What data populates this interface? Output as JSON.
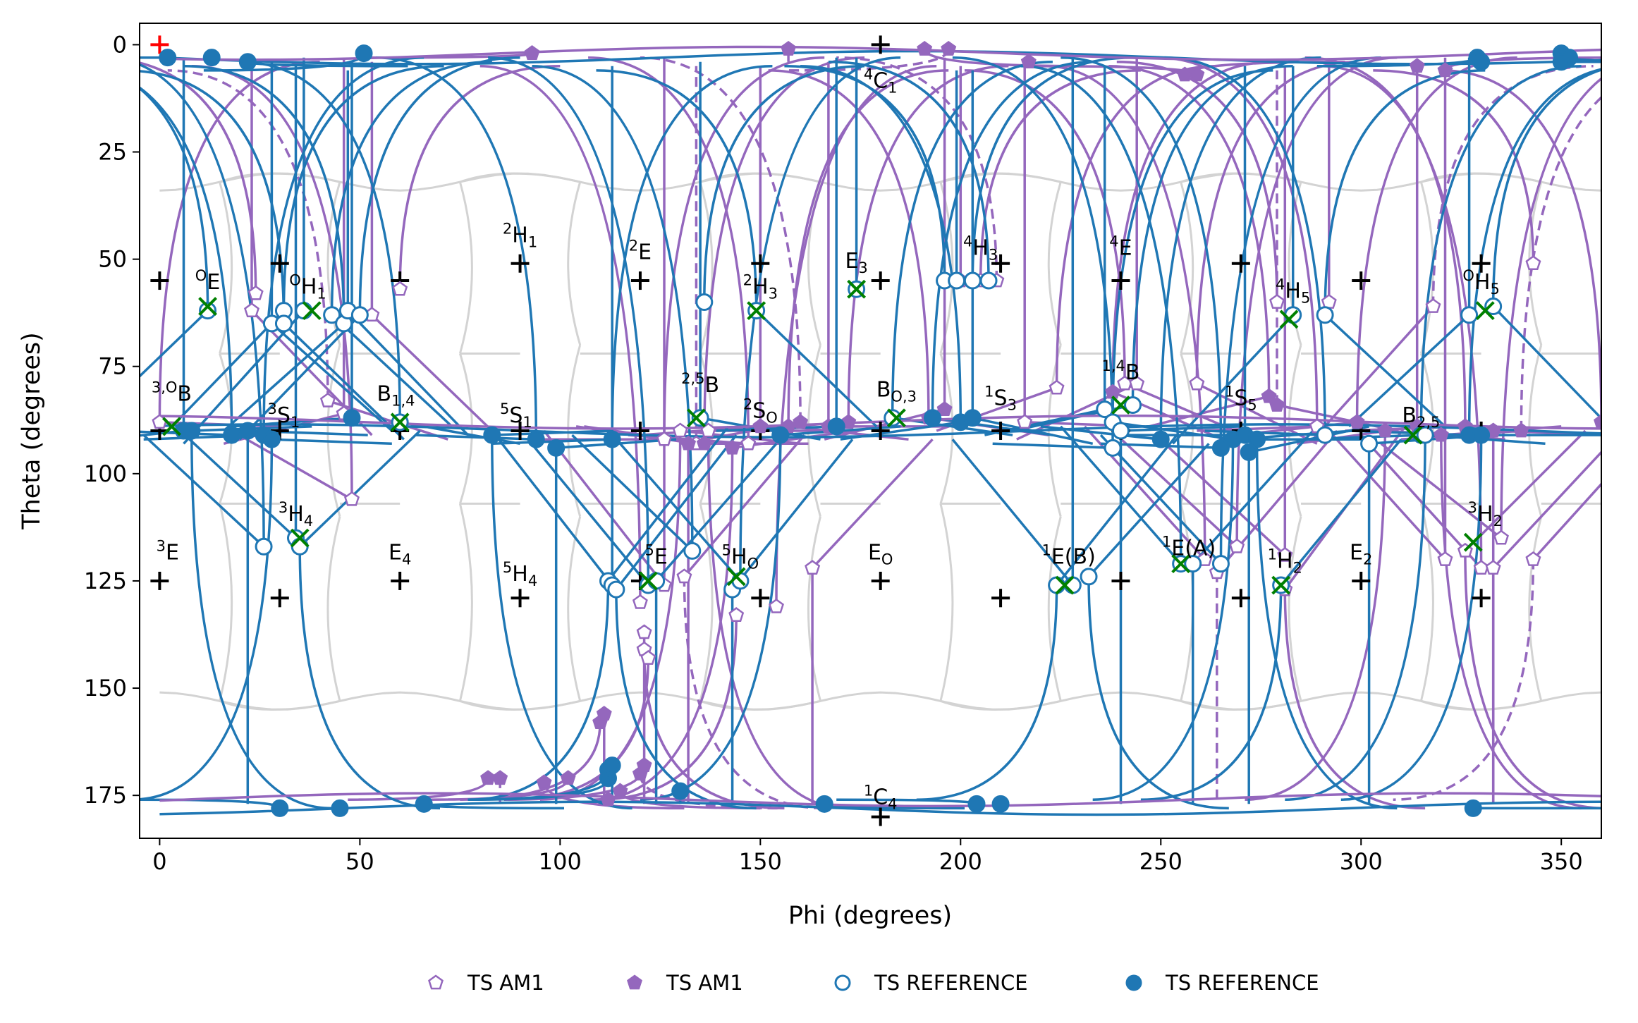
{
  "chart_data": {
    "type": "scatter",
    "title": "",
    "xlabel": "Phi (degrees)",
    "ylabel": "Theta (degrees)",
    "xlim": [
      -5,
      360
    ],
    "ylim": [
      185,
      -5
    ],
    "y_inverted": true,
    "xticks": [
      0,
      50,
      100,
      150,
      200,
      250,
      300,
      350
    ],
    "yticks": [
      0,
      25,
      50,
      75,
      100,
      125,
      150,
      175
    ],
    "grid": false,
    "legend_position": "bottom-center",
    "colors": {
      "am1": "#9467bd",
      "reference": "#1f77b4",
      "background_lines": "#d3d3d3",
      "landmark": "#000000",
      "start_marker": "#ff0000",
      "transition_marker": "#008000"
    },
    "legend": [
      {
        "label": "TS AM1",
        "marker": "pentagon-open",
        "color": "#9467bd"
      },
      {
        "label": "TS AM1",
        "marker": "pentagon-filled",
        "color": "#9467bd"
      },
      {
        "label": "TS REFERENCE",
        "marker": "circle-open",
        "color": "#1f77b4"
      },
      {
        "label": "TS REFERENCE",
        "marker": "circle-filled",
        "color": "#1f77b4"
      }
    ],
    "puckering_labels": [
      {
        "text": "4C1",
        "x": 180,
        "y": 10
      },
      {
        "text": "1C4",
        "x": 180,
        "y": 177
      },
      {
        "text": "OE",
        "x": 12,
        "y": 57
      },
      {
        "text": "OH1",
        "x": 37,
        "y": 58
      },
      {
        "text": "2H1",
        "x": 90,
        "y": 46
      },
      {
        "text": "2E",
        "x": 120,
        "y": 50
      },
      {
        "text": "2H3",
        "x": 150,
        "y": 58
      },
      {
        "text": "E3",
        "x": 174,
        "y": 52
      },
      {
        "text": "4H3",
        "x": 205,
        "y": 49
      },
      {
        "text": "4E",
        "x": 240,
        "y": 49
      },
      {
        "text": "4H5",
        "x": 283,
        "y": 59
      },
      {
        "text": "OH5",
        "x": 330,
        "y": 57
      },
      {
        "text": "3,OB",
        "x": 3,
        "y": 83
      },
      {
        "text": "3S1",
        "x": 31,
        "y": 88
      },
      {
        "text": "B1,4",
        "x": 59,
        "y": 83
      },
      {
        "text": "5S1",
        "x": 89,
        "y": 88
      },
      {
        "text": "2,5B",
        "x": 135,
        "y": 81
      },
      {
        "text": "2SO",
        "x": 150,
        "y": 87
      },
      {
        "text": "BO,3",
        "x": 184,
        "y": 82
      },
      {
        "text": "1S3",
        "x": 210,
        "y": 84
      },
      {
        "text": "1,4B",
        "x": 240,
        "y": 78
      },
      {
        "text": "1S5",
        "x": 270,
        "y": 84
      },
      {
        "text": "B2,5",
        "x": 315,
        "y": 88
      },
      {
        "text": "3E",
        "x": 2,
        "y": 120
      },
      {
        "text": "3H4",
        "x": 34,
        "y": 111
      },
      {
        "text": "E4",
        "x": 60,
        "y": 120
      },
      {
        "text": "5H4",
        "x": 90,
        "y": 125
      },
      {
        "text": "5E",
        "x": 124,
        "y": 121
      },
      {
        "text": "5HO",
        "x": 145,
        "y": 121
      },
      {
        "text": "EO",
        "x": 180,
        "y": 120
      },
      {
        "text": "1E(B)",
        "x": 227,
        "y": 121
      },
      {
        "text": "1E(A)",
        "x": 257,
        "y": 119
      },
      {
        "text": "1H2",
        "x": 281,
        "y": 122
      },
      {
        "text": "E2",
        "x": 300,
        "y": 120
      },
      {
        "text": "3H2",
        "x": 331,
        "y": 111
      }
    ],
    "landmarks_plus": [
      {
        "x": 0,
        "y": 55
      },
      {
        "x": 30,
        "y": 51
      },
      {
        "x": 60,
        "y": 55
      },
      {
        "x": 90,
        "y": 51
      },
      {
        "x": 120,
        "y": 55
      },
      {
        "x": 150,
        "y": 51
      },
      {
        "x": 180,
        "y": 55
      },
      {
        "x": 210,
        "y": 51
      },
      {
        "x": 240,
        "y": 55
      },
      {
        "x": 270,
        "y": 51
      },
      {
        "x": 300,
        "y": 55
      },
      {
        "x": 330,
        "y": 51
      },
      {
        "x": 0,
        "y": 90
      },
      {
        "x": 30,
        "y": 90
      },
      {
        "x": 60,
        "y": 90
      },
      {
        "x": 90,
        "y": 90
      },
      {
        "x": 120,
        "y": 90
      },
      {
        "x": 150,
        "y": 90
      },
      {
        "x": 180,
        "y": 90
      },
      {
        "x": 210,
        "y": 90
      },
      {
        "x": 240,
        "y": 90
      },
      {
        "x": 270,
        "y": 90
      },
      {
        "x": 300,
        "y": 90
      },
      {
        "x": 330,
        "y": 90
      },
      {
        "x": 0,
        "y": 125
      },
      {
        "x": 30,
        "y": 129
      },
      {
        "x": 60,
        "y": 125
      },
      {
        "x": 90,
        "y": 129
      },
      {
        "x": 120,
        "y": 125
      },
      {
        "x": 150,
        "y": 129
      },
      {
        "x": 180,
        "y": 125
      },
      {
        "x": 210,
        "y": 129
      },
      {
        "x": 240,
        "y": 125
      },
      {
        "x": 270,
        "y": 129
      },
      {
        "x": 300,
        "y": 125
      },
      {
        "x": 330,
        "y": 129
      },
      {
        "x": 180,
        "y": 0
      },
      {
        "x": 180,
        "y": 180
      }
    ],
    "start_point": {
      "x": 0,
      "y": 0
    },
    "transition_x_markers": [
      {
        "x": 12,
        "y": 61
      },
      {
        "x": 38,
        "y": 62
      },
      {
        "x": 3,
        "y": 89
      },
      {
        "x": 60,
        "y": 88
      },
      {
        "x": 134,
        "y": 87
      },
      {
        "x": 149,
        "y": 62
      },
      {
        "x": 174,
        "y": 57
      },
      {
        "x": 240,
        "y": 84
      },
      {
        "x": 282,
        "y": 64
      },
      {
        "x": 331,
        "y": 62
      },
      {
        "x": 35,
        "y": 115
      },
      {
        "x": 122,
        "y": 125
      },
      {
        "x": 144,
        "y": 124
      },
      {
        "x": 226,
        "y": 126
      },
      {
        "x": 255,
        "y": 121
      },
      {
        "x": 280,
        "y": 126
      },
      {
        "x": 313,
        "y": 91
      },
      {
        "x": 328,
        "y": 116
      },
      {
        "x": 184,
        "y": 87
      }
    ],
    "series": [
      {
        "name": "TS AM1",
        "marker": "pentagon-open",
        "color": "#9467bd",
        "points": [
          [
            24,
            58
          ],
          [
            53,
            63
          ],
          [
            60,
            57
          ],
          [
            42,
            83
          ],
          [
            46,
            86
          ],
          [
            0,
            88
          ],
          [
            48,
            106
          ],
          [
            23,
            62
          ],
          [
            126,
            92
          ],
          [
            130,
            90
          ],
          [
            134,
            93
          ],
          [
            137,
            90
          ],
          [
            147,
            93
          ],
          [
            163,
            122
          ],
          [
            154,
            131
          ],
          [
            144,
            133
          ],
          [
            126,
            126
          ],
          [
            131,
            124
          ],
          [
            120,
            130
          ],
          [
            121,
            137
          ],
          [
            121,
            141
          ],
          [
            122,
            143
          ],
          [
            200,
            55
          ],
          [
            205,
            55
          ],
          [
            209,
            55
          ],
          [
            216,
            88
          ],
          [
            224,
            80
          ],
          [
            241,
            79
          ],
          [
            244,
            79
          ],
          [
            259,
            79
          ],
          [
            261,
            120
          ],
          [
            264,
            123
          ],
          [
            269,
            117
          ],
          [
            279,
            60
          ],
          [
            281,
            119
          ],
          [
            281,
            127
          ],
          [
            289,
            89
          ],
          [
            292,
            60
          ],
          [
            318,
            61
          ],
          [
            343,
            51
          ],
          [
            321,
            120
          ],
          [
            326,
            118
          ],
          [
            330,
            122
          ],
          [
            333,
            122
          ],
          [
            335,
            115
          ],
          [
            343,
            120
          ]
        ]
      },
      {
        "name": "TS AM1",
        "marker": "pentagon-filled",
        "color": "#9467bd",
        "points": [
          [
            93,
            2
          ],
          [
            157,
            1
          ],
          [
            191,
            1
          ],
          [
            197,
            1
          ],
          [
            217,
            4
          ],
          [
            256,
            7
          ],
          [
            259,
            7
          ],
          [
            314,
            5
          ],
          [
            321,
            6
          ],
          [
            82,
            171
          ],
          [
            85,
            171
          ],
          [
            96,
            172
          ],
          [
            102,
            171
          ],
          [
            112,
            176
          ],
          [
            115,
            174
          ],
          [
            110,
            158
          ],
          [
            111,
            156
          ],
          [
            120,
            170
          ],
          [
            121,
            168
          ],
          [
            132,
            93
          ],
          [
            136,
            93
          ],
          [
            143,
            94
          ],
          [
            150,
            89
          ],
          [
            157,
            89
          ],
          [
            160,
            88
          ],
          [
            167,
            89
          ],
          [
            172,
            88
          ],
          [
            192,
            87
          ],
          [
            196,
            85
          ],
          [
            238,
            81
          ],
          [
            277,
            82
          ],
          [
            279,
            84
          ],
          [
            299,
            88
          ],
          [
            306,
            90
          ],
          [
            314,
            89
          ],
          [
            320,
            91
          ],
          [
            326,
            89
          ],
          [
            333,
            90
          ],
          [
            340,
            90
          ],
          [
            360,
            88
          ]
        ]
      },
      {
        "name": "TS REFERENCE",
        "marker": "circle-open",
        "color": "#1f77b4",
        "points": [
          [
            12,
            62
          ],
          [
            28,
            65
          ],
          [
            31,
            62
          ],
          [
            31,
            65
          ],
          [
            36,
            62
          ],
          [
            43,
            63
          ],
          [
            46,
            65
          ],
          [
            47,
            62
          ],
          [
            50,
            63
          ],
          [
            60,
            88
          ],
          [
            34,
            115
          ],
          [
            35,
            117
          ],
          [
            26,
            117
          ],
          [
            135,
            87
          ],
          [
            136,
            60
          ],
          [
            149,
            62
          ],
          [
            174,
            57
          ],
          [
            183,
            87
          ],
          [
            196,
            55
          ],
          [
            199,
            55
          ],
          [
            203,
            55
          ],
          [
            207,
            55
          ],
          [
            236,
            85
          ],
          [
            238,
            88
          ],
          [
            238,
            94
          ],
          [
            240,
            90
          ],
          [
            243,
            84
          ],
          [
            224,
            126
          ],
          [
            228,
            126
          ],
          [
            232,
            124
          ],
          [
            255,
            121
          ],
          [
            258,
            121
          ],
          [
            265,
            121
          ],
          [
            280,
            126
          ],
          [
            283,
            63
          ],
          [
            291,
            63
          ],
          [
            291,
            91
          ],
          [
            302,
            93
          ],
          [
            315,
            91
          ],
          [
            316,
            91
          ],
          [
            327,
            63
          ],
          [
            333,
            61
          ],
          [
            133,
            118
          ],
          [
            143,
            127
          ],
          [
            145,
            125
          ],
          [
            112,
            125
          ],
          [
            113,
            126
          ],
          [
            114,
            127
          ],
          [
            122,
            126
          ],
          [
            124,
            125
          ]
        ]
      },
      {
        "name": "TS REFERENCE",
        "marker": "circle-filled",
        "color": "#1f77b4",
        "points": [
          [
            2,
            3
          ],
          [
            13,
            3
          ],
          [
            22,
            4
          ],
          [
            51,
            2
          ],
          [
            6,
            90
          ],
          [
            8,
            90
          ],
          [
            18,
            91
          ],
          [
            22,
            90
          ],
          [
            26,
            91
          ],
          [
            28,
            92
          ],
          [
            48,
            87
          ],
          [
            83,
            91
          ],
          [
            94,
            92
          ],
          [
            99,
            94
          ],
          [
            113,
            92
          ],
          [
            155,
            91
          ],
          [
            169,
            89
          ],
          [
            193,
            87
          ],
          [
            200,
            88
          ],
          [
            203,
            87
          ],
          [
            250,
            92
          ],
          [
            268,
            92
          ],
          [
            271,
            91
          ],
          [
            274,
            92
          ],
          [
            265,
            94
          ],
          [
            272,
            95
          ],
          [
            327,
            91
          ],
          [
            330,
            91
          ],
          [
            350,
            2
          ],
          [
            352,
            3
          ],
          [
            30,
            178
          ],
          [
            45,
            178
          ],
          [
            66,
            177
          ],
          [
            112,
            171
          ],
          [
            130,
            174
          ],
          [
            166,
            177
          ],
          [
            204,
            177
          ],
          [
            210,
            177
          ],
          [
            328,
            178
          ],
          [
            112,
            169
          ],
          [
            113,
            168
          ],
          [
            350,
            4
          ],
          [
            329,
            3
          ],
          [
            330,
            4
          ]
        ]
      }
    ]
  }
}
